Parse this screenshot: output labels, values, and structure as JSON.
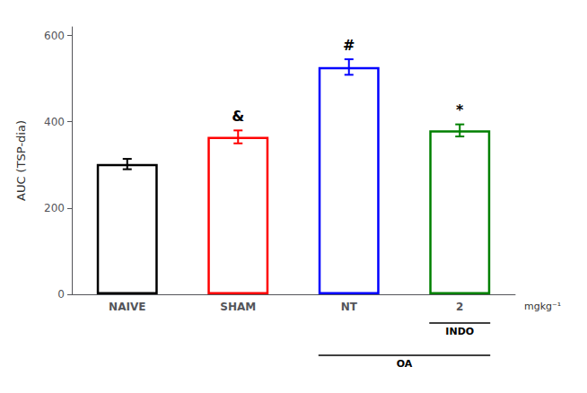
{
  "chart_data": {
    "type": "bar",
    "categories": [
      "NAIVE",
      "SHAM",
      "NT",
      "2"
    ],
    "values": [
      302,
      365,
      527,
      380
    ],
    "errors": [
      12,
      15,
      18,
      14
    ],
    "colors": [
      "black",
      "red",
      "blue",
      "green"
    ],
    "ylabel": "AUC (TSP-dia)",
    "xlabel": "mgkg⁻¹",
    "ylim": [
      0,
      620
    ],
    "yticks": [
      0,
      200,
      400,
      600
    ],
    "grid": false,
    "annotations": [
      {
        "text": "&",
        "category": "SHAM"
      },
      {
        "text": "#",
        "category": "NT"
      },
      {
        "text": "*",
        "category": "2"
      }
    ],
    "brackets": [
      {
        "text": "INDO",
        "categories": [
          "2"
        ]
      },
      {
        "text": "OA",
        "categories": [
          "NT",
          "2"
        ]
      }
    ]
  }
}
